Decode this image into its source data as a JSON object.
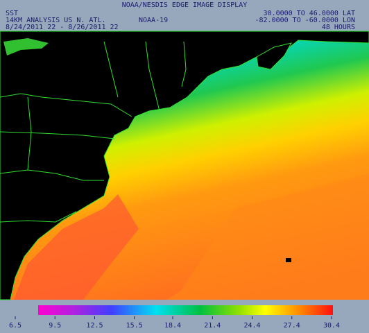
{
  "header": {
    "title": "NOAA/NESDIS EDGE IMAGE DISPLAY",
    "product": "SST",
    "analysis": "14KM ANALYSIS US N. ATL.",
    "dates": "8/24/2011 22 - 8/26/2011 22",
    "satellite": "NOAA-19",
    "lat_range": "30.0000 TO 46.0000 LAT",
    "lon_range": "-82.0000 TO -60.0000 LON",
    "period": "48 HOURS"
  },
  "colorbar": {
    "ticks": [
      6.5,
      9.5,
      12.5,
      15.5,
      18.4,
      21.4,
      24.4,
      27.4,
      30.4
    ]
  }
}
